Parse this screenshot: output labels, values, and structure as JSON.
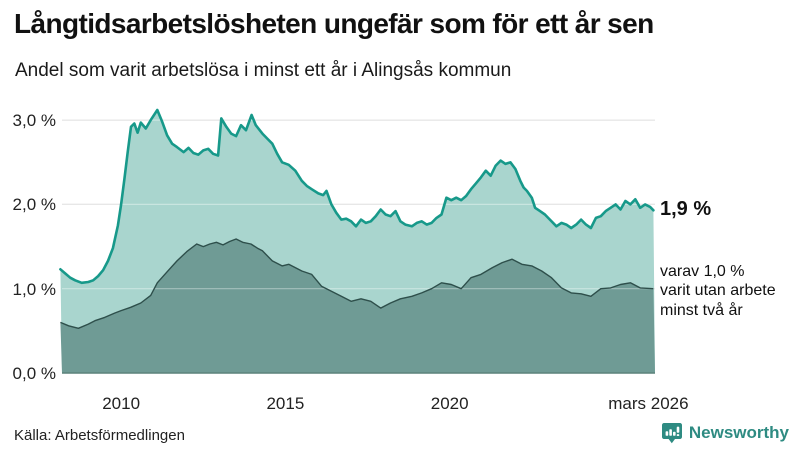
{
  "header": {
    "title": "Långtidsarbetslösheten ungefär som för ett år sen",
    "subtitle": "Andel som varit arbetslösa i minst ett år i Alingsås kommun"
  },
  "chart_data": {
    "type": "area",
    "title": "Långtidsarbetslösheten ungefär som för ett år sen",
    "xlabel": "",
    "ylabel": "",
    "x_axis": {
      "range": [
        2008.2,
        2026.25
      ],
      "ticks": [
        {
          "label": "2010",
          "year": 2010
        },
        {
          "label": "2015",
          "year": 2015
        },
        {
          "label": "2020",
          "year": 2020
        },
        {
          "label": "mars 2026",
          "year": 2026.05
        }
      ]
    },
    "y_axis": {
      "range": [
        0,
        3.3
      ],
      "grid": true,
      "ticks": [
        {
          "label": "0,0 %",
          "value": 0
        },
        {
          "label": "1,0 %",
          "value": 1
        },
        {
          "label": "2,0 %",
          "value": 2
        },
        {
          "label": "3,0 %",
          "value": 3
        }
      ]
    },
    "colors": {
      "total_line": "#17998a",
      "total_fill": "#a9d5ce",
      "twoyear_line": "#2e4f4b",
      "twoyear_fill": "#6f9b95",
      "gridline": "#d8d8d8"
    },
    "series": [
      {
        "name": "Andel arbetslösa minst ett år",
        "end_value_label": "1,9 %",
        "points": [
          [
            2008.15,
            1.23
          ],
          [
            2008.3,
            1.18
          ],
          [
            2008.45,
            1.13
          ],
          [
            2008.6,
            1.1
          ],
          [
            2008.8,
            1.07
          ],
          [
            2009.0,
            1.08
          ],
          [
            2009.15,
            1.1
          ],
          [
            2009.3,
            1.15
          ],
          [
            2009.45,
            1.22
          ],
          [
            2009.6,
            1.33
          ],
          [
            2009.75,
            1.48
          ],
          [
            2009.9,
            1.75
          ],
          [
            2010.0,
            2.0
          ],
          [
            2010.1,
            2.3
          ],
          [
            2010.2,
            2.62
          ],
          [
            2010.3,
            2.92
          ],
          [
            2010.4,
            2.96
          ],
          [
            2010.5,
            2.85
          ],
          [
            2010.6,
            2.97
          ],
          [
            2010.75,
            2.9
          ],
          [
            2010.9,
            3.0
          ],
          [
            2011.1,
            3.12
          ],
          [
            2011.25,
            2.98
          ],
          [
            2011.4,
            2.82
          ],
          [
            2011.55,
            2.72
          ],
          [
            2011.7,
            2.68
          ],
          [
            2011.9,
            2.62
          ],
          [
            2012.05,
            2.67
          ],
          [
            2012.2,
            2.61
          ],
          [
            2012.35,
            2.59
          ],
          [
            2012.5,
            2.64
          ],
          [
            2012.65,
            2.66
          ],
          [
            2012.8,
            2.6
          ],
          [
            2012.95,
            2.58
          ],
          [
            2013.05,
            3.02
          ],
          [
            2013.2,
            2.92
          ],
          [
            2013.35,
            2.84
          ],
          [
            2013.5,
            2.81
          ],
          [
            2013.65,
            2.94
          ],
          [
            2013.8,
            2.88
          ],
          [
            2013.97,
            3.06
          ],
          [
            2014.1,
            2.94
          ],
          [
            2014.3,
            2.84
          ],
          [
            2014.45,
            2.78
          ],
          [
            2014.6,
            2.72
          ],
          [
            2014.75,
            2.6
          ],
          [
            2014.9,
            2.5
          ],
          [
            2015.1,
            2.47
          ],
          [
            2015.3,
            2.4
          ],
          [
            2015.5,
            2.28
          ],
          [
            2015.65,
            2.22
          ],
          [
            2015.8,
            2.18
          ],
          [
            2016.0,
            2.13
          ],
          [
            2016.15,
            2.11
          ],
          [
            2016.25,
            2.16
          ],
          [
            2016.4,
            2.0
          ],
          [
            2016.55,
            1.9
          ],
          [
            2016.7,
            1.82
          ],
          [
            2016.85,
            1.83
          ],
          [
            2017.0,
            1.8
          ],
          [
            2017.15,
            1.74
          ],
          [
            2017.3,
            1.82
          ],
          [
            2017.45,
            1.78
          ],
          [
            2017.6,
            1.8
          ],
          [
            2017.75,
            1.86
          ],
          [
            2017.9,
            1.94
          ],
          [
            2018.05,
            1.88
          ],
          [
            2018.2,
            1.86
          ],
          [
            2018.35,
            1.92
          ],
          [
            2018.5,
            1.8
          ],
          [
            2018.65,
            1.76
          ],
          [
            2018.85,
            1.74
          ],
          [
            2019.0,
            1.78
          ],
          [
            2019.15,
            1.8
          ],
          [
            2019.3,
            1.76
          ],
          [
            2019.45,
            1.78
          ],
          [
            2019.6,
            1.84
          ],
          [
            2019.75,
            1.88
          ],
          [
            2019.9,
            2.08
          ],
          [
            2020.05,
            2.05
          ],
          [
            2020.2,
            2.08
          ],
          [
            2020.35,
            2.05
          ],
          [
            2020.5,
            2.1
          ],
          [
            2020.65,
            2.18
          ],
          [
            2020.8,
            2.25
          ],
          [
            2020.95,
            2.32
          ],
          [
            2021.1,
            2.4
          ],
          [
            2021.25,
            2.34
          ],
          [
            2021.4,
            2.46
          ],
          [
            2021.55,
            2.52
          ],
          [
            2021.7,
            2.48
          ],
          [
            2021.85,
            2.5
          ],
          [
            2022.0,
            2.42
          ],
          [
            2022.15,
            2.28
          ],
          [
            2022.25,
            2.2
          ],
          [
            2022.35,
            2.16
          ],
          [
            2022.5,
            2.08
          ],
          [
            2022.6,
            1.96
          ],
          [
            2022.75,
            1.92
          ],
          [
            2022.9,
            1.88
          ],
          [
            2023.05,
            1.82
          ],
          [
            2023.25,
            1.74
          ],
          [
            2023.4,
            1.78
          ],
          [
            2023.55,
            1.76
          ],
          [
            2023.7,
            1.72
          ],
          [
            2023.85,
            1.76
          ],
          [
            2024.0,
            1.82
          ],
          [
            2024.15,
            1.76
          ],
          [
            2024.3,
            1.72
          ],
          [
            2024.45,
            1.84
          ],
          [
            2024.6,
            1.86
          ],
          [
            2024.75,
            1.92
          ],
          [
            2024.9,
            1.96
          ],
          [
            2025.05,
            2.0
          ],
          [
            2025.2,
            1.94
          ],
          [
            2025.35,
            2.04
          ],
          [
            2025.5,
            2.0
          ],
          [
            2025.65,
            2.06
          ],
          [
            2025.8,
            1.96
          ],
          [
            2025.95,
            2.0
          ],
          [
            2026.1,
            1.97
          ],
          [
            2026.2,
            1.93
          ]
        ]
      },
      {
        "name": "varav utan arbete minst två år",
        "end_value_label": "1,0 %",
        "points": [
          [
            2008.15,
            0.6
          ],
          [
            2008.4,
            0.56
          ],
          [
            2008.7,
            0.53
          ],
          [
            2009.0,
            0.58
          ],
          [
            2009.2,
            0.62
          ],
          [
            2009.5,
            0.66
          ],
          [
            2009.8,
            0.71
          ],
          [
            2010.0,
            0.74
          ],
          [
            2010.3,
            0.78
          ],
          [
            2010.6,
            0.83
          ],
          [
            2010.9,
            0.92
          ],
          [
            2011.1,
            1.07
          ],
          [
            2011.4,
            1.2
          ],
          [
            2011.7,
            1.33
          ],
          [
            2012.0,
            1.44
          ],
          [
            2012.3,
            1.53
          ],
          [
            2012.5,
            1.5
          ],
          [
            2012.7,
            1.53
          ],
          [
            2012.9,
            1.55
          ],
          [
            2013.1,
            1.52
          ],
          [
            2013.3,
            1.56
          ],
          [
            2013.5,
            1.59
          ],
          [
            2013.7,
            1.55
          ],
          [
            2013.95,
            1.53
          ],
          [
            2014.15,
            1.48
          ],
          [
            2014.3,
            1.45
          ],
          [
            2014.6,
            1.33
          ],
          [
            2014.9,
            1.27
          ],
          [
            2015.1,
            1.29
          ],
          [
            2015.3,
            1.25
          ],
          [
            2015.5,
            1.21
          ],
          [
            2015.8,
            1.17
          ],
          [
            2016.1,
            1.03
          ],
          [
            2016.4,
            0.97
          ],
          [
            2016.7,
            0.91
          ],
          [
            2017.0,
            0.85
          ],
          [
            2017.3,
            0.88
          ],
          [
            2017.6,
            0.85
          ],
          [
            2017.9,
            0.77
          ],
          [
            2018.2,
            0.83
          ],
          [
            2018.5,
            0.88
          ],
          [
            2018.85,
            0.91
          ],
          [
            2019.15,
            0.95
          ],
          [
            2019.45,
            1.0
          ],
          [
            2019.75,
            1.07
          ],
          [
            2020.05,
            1.05
          ],
          [
            2020.35,
            1.0
          ],
          [
            2020.65,
            1.13
          ],
          [
            2020.95,
            1.17
          ],
          [
            2021.3,
            1.25
          ],
          [
            2021.6,
            1.31
          ],
          [
            2021.9,
            1.35
          ],
          [
            2022.2,
            1.29
          ],
          [
            2022.5,
            1.27
          ],
          [
            2022.8,
            1.21
          ],
          [
            2023.1,
            1.13
          ],
          [
            2023.4,
            1.01
          ],
          [
            2023.7,
            0.95
          ],
          [
            2024.0,
            0.94
          ],
          [
            2024.3,
            0.91
          ],
          [
            2024.6,
            1.0
          ],
          [
            2024.9,
            1.01
          ],
          [
            2025.2,
            1.05
          ],
          [
            2025.5,
            1.07
          ],
          [
            2025.8,
            1.01
          ],
          [
            2026.2,
            1.0
          ]
        ]
      }
    ],
    "annotations": {
      "end_label": "1,9 %",
      "sub_label_lines": [
        "varav 1,0 %",
        "varit utan arbete",
        "minst två år"
      ]
    }
  },
  "footer": {
    "source": "Källa: Arbetsförmedlingen",
    "brand": "Newsworthy"
  }
}
